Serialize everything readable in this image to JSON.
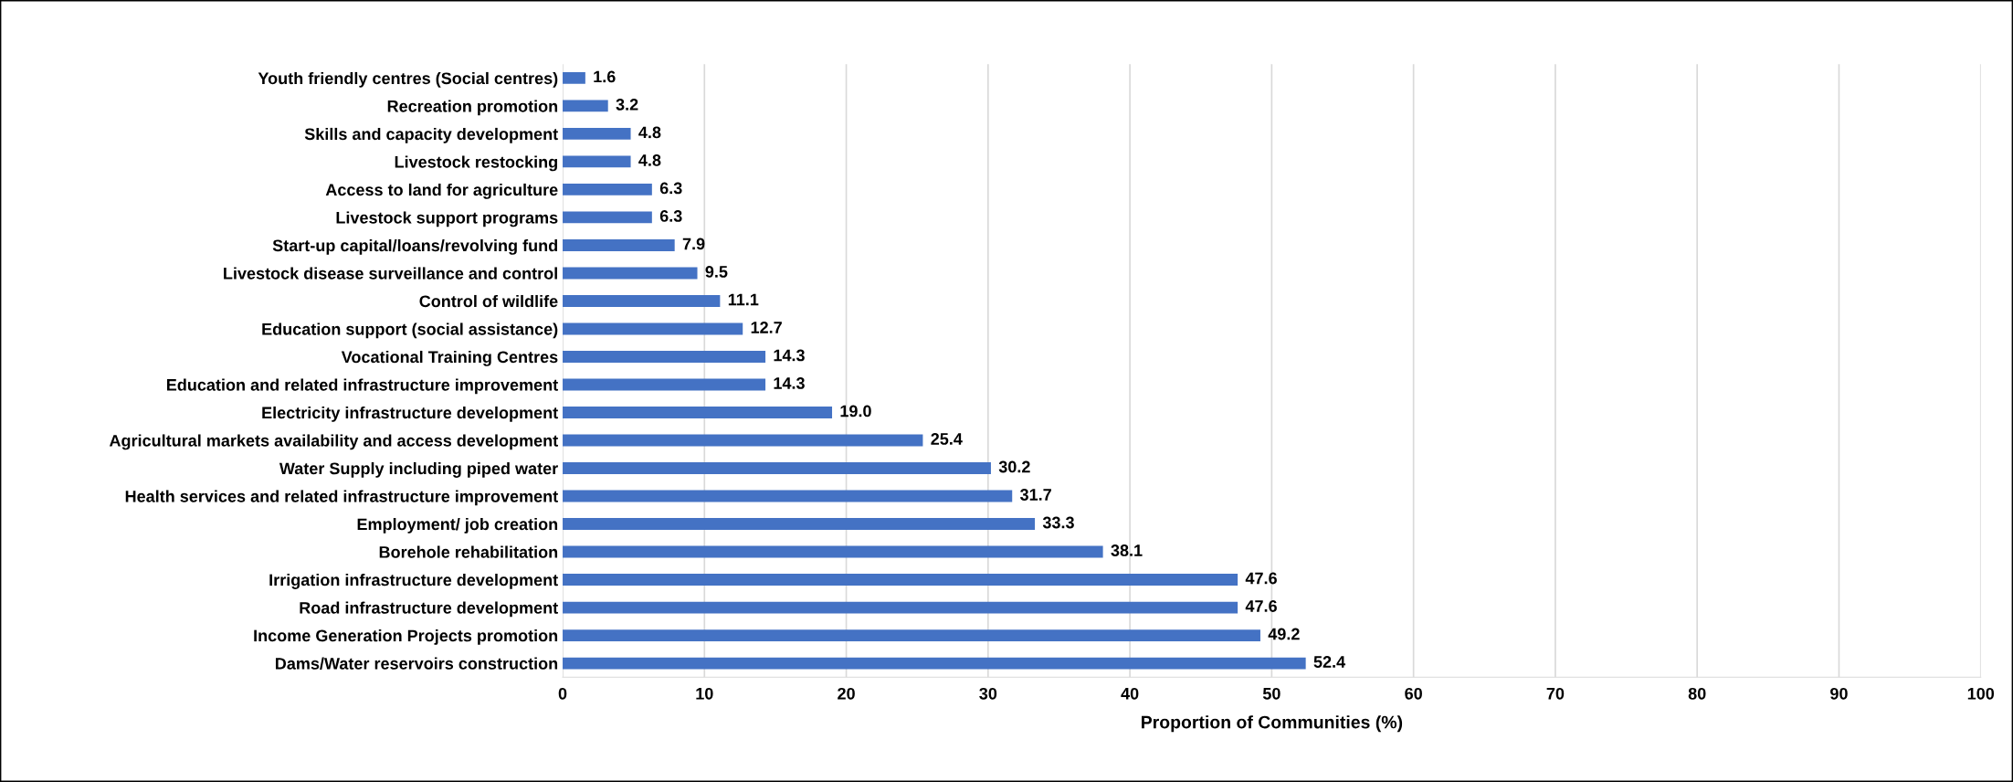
{
  "chart_data": {
    "type": "bar",
    "orientation": "horizontal",
    "xlabel": "Proportion of Communities (%)",
    "categories": [
      "Youth friendly centres (Social centres)",
      "Recreation promotion",
      "Skills and capacity development",
      "Livestock restocking",
      "Access to land for agriculture",
      "Livestock support programs",
      "Start-up capital/loans/revolving fund",
      "Livestock disease surveillance and control",
      "Control of wildlife",
      "Education support (social assistance)",
      "Vocational Training Centres",
      "Education and related infrastructure improvement",
      "Electricity infrastructure development",
      "Agricultural markets availability and access development",
      "Water Supply including piped water",
      "Health services and related infrastructure improvement",
      "Employment/ job creation",
      "Borehole rehabilitation",
      "Irrigation infrastructure development",
      "Road infrastructure development",
      "Income Generation Projects promotion",
      "Dams/Water reservoirs construction"
    ],
    "values": [
      1.6,
      3.2,
      4.8,
      4.8,
      6.3,
      6.3,
      7.9,
      9.5,
      11.1,
      12.7,
      14.3,
      14.3,
      19.0,
      25.4,
      30.2,
      31.7,
      33.3,
      38.1,
      47.6,
      47.6,
      49.2,
      52.4
    ],
    "value_labels": [
      "1.6",
      "3.2",
      "4.8",
      "4.8",
      "6.3",
      "6.3",
      "7.9",
      "9.5",
      "11.1",
      "12.7",
      "14.3",
      "14.3",
      "19.0",
      "25.4",
      "30.2",
      "31.7",
      "33.3",
      "38.1",
      "47.6",
      "47.6",
      "49.2",
      "52.4"
    ],
    "color": "#4472c4",
    "xlim": [
      0,
      100
    ],
    "xticks": [
      0,
      10,
      20,
      30,
      40,
      50,
      60,
      70,
      80,
      90,
      100
    ],
    "grid": "x",
    "legend": false
  }
}
